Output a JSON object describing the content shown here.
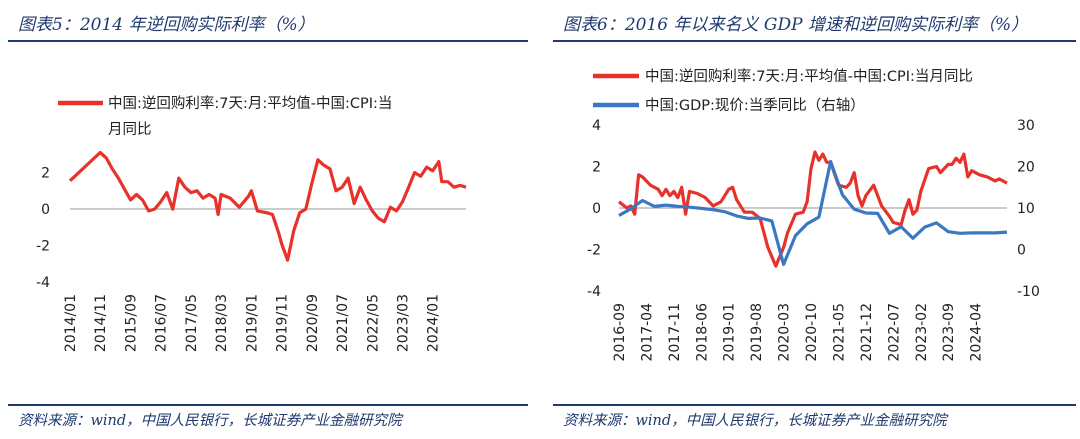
{
  "colors": {
    "red": "#e8312b",
    "blue": "#3a78c3",
    "navy": "#1f3a6e"
  },
  "left_panel": {
    "title": "图表5：2014 年逆回购实际利率（%）",
    "source": "资料来源：wind，中国人民银行，长城证券产业金融研究院"
  },
  "right_panel": {
    "title": "图表6：2016 年以来名义 GDP 增速和逆回购实际利率（%）",
    "source": "资料来源：wind，中国人民银行，长城证券产业金融研究院"
  },
  "chart_data": [
    {
      "type": "line",
      "title": "图表5：2014 年逆回购实际利率（%）",
      "legend": "top-left",
      "y_ticks": [
        "2",
        "0",
        "-2",
        "-4"
      ],
      "ylim": [
        -4,
        2.8
      ],
      "x_ticks": [
        "2014/01",
        "2014/11",
        "2015/09",
        "2016/07",
        "2017/05",
        "2018/03",
        "2019/01",
        "2019/11",
        "2020/09",
        "2021/07",
        "2022/05",
        "2023/03",
        "2024/01"
      ],
      "series": [
        {
          "name": "中国:逆回购利率:7天:月:平均值-中国:CPI:当月同比",
          "legend_lines": [
            "中国:逆回购利率:7天:月:平均值-中国:CPI:当",
            "月同比"
          ],
          "color": "#e8312b",
          "points": [
            [
              "2014/01",
              1.55
            ],
            [
              "2014/11",
              3.1
            ],
            [
              "2015/01",
              2.8
            ],
            [
              "2015/03",
              2.2
            ],
            [
              "2015/05",
              1.7
            ],
            [
              "2015/07",
              1.1
            ],
            [
              "2015/09",
              0.5
            ],
            [
              "2015/11",
              0.8
            ],
            [
              "2016/01",
              0.5
            ],
            [
              "2016/03",
              -0.1
            ],
            [
              "2016/05",
              0.0
            ],
            [
              "2016/07",
              0.4
            ],
            [
              "2016/09",
              0.9
            ],
            [
              "2016/11",
              0.0
            ],
            [
              "2017/01",
              1.7
            ],
            [
              "2017/03",
              1.2
            ],
            [
              "2017/05",
              0.9
            ],
            [
              "2017/07",
              1.0
            ],
            [
              "2017/09",
              0.6
            ],
            [
              "2017/11",
              0.8
            ],
            [
              "2018/01",
              0.6
            ],
            [
              "2018/02",
              -0.3
            ],
            [
              "2018/03",
              0.8
            ],
            [
              "2018/06",
              0.6
            ],
            [
              "2018/09",
              0.1
            ],
            [
              "2018/12",
              0.7
            ],
            [
              "2019/01",
              1.0
            ],
            [
              "2019/03",
              -0.1
            ],
            [
              "2019/06",
              -0.2
            ],
            [
              "2019/08",
              -0.3
            ],
            [
              "2019/10",
              -1.3
            ],
            [
              "2019/11",
              -1.9
            ],
            [
              "2020/01",
              -2.8
            ],
            [
              "2020/03",
              -1.2
            ],
            [
              "2020/05",
              -0.2
            ],
            [
              "2020/07",
              0.0
            ],
            [
              "2020/09",
              1.4
            ],
            [
              "2020/11",
              2.7
            ],
            [
              "2021/01",
              2.4
            ],
            [
              "2021/03",
              2.2
            ],
            [
              "2021/05",
              1.0
            ],
            [
              "2021/07",
              1.2
            ],
            [
              "2021/09",
              1.7
            ],
            [
              "2021/11",
              0.3
            ],
            [
              "2022/01",
              1.2
            ],
            [
              "2022/03",
              0.5
            ],
            [
              "2022/05",
              -0.1
            ],
            [
              "2022/07",
              -0.5
            ],
            [
              "2022/09",
              -0.7
            ],
            [
              "2022/11",
              0.1
            ],
            [
              "2023/01",
              -0.1
            ],
            [
              "2023/03",
              0.4
            ],
            [
              "2023/05",
              1.2
            ],
            [
              "2023/07",
              2.0
            ],
            [
              "2023/09",
              1.8
            ],
            [
              "2023/11",
              2.3
            ],
            [
              "2024/01",
              2.1
            ],
            [
              "2024/03",
              2.6
            ],
            [
              "2024/04",
              1.5
            ],
            [
              "2024/06",
              1.5
            ],
            [
              "2024/08",
              1.2
            ],
            [
              "2024/10",
              1.3
            ],
            [
              "2024/12",
              1.2
            ]
          ]
        }
      ]
    },
    {
      "type": "line",
      "title": "图表6：2016 年以来名义 GDP 增速和逆回购实际利率（%）",
      "legend": "top-left",
      "y_ticks_left": [
        "4",
        "2",
        "0",
        "-2",
        "-4"
      ],
      "ylim_left": [
        -4,
        4
      ],
      "y_ticks_right": [
        "30",
        "20",
        "10",
        "0",
        "-10"
      ],
      "ylim_right": [
        -10,
        30
      ],
      "x_ticks": [
        "2016-09",
        "2017-04",
        "2017-11",
        "2018-06",
        "2019-01",
        "2019-08",
        "2020-03",
        "2020-10",
        "2021-05",
        "2021-12",
        "2022-07",
        "2023-02",
        "2023-09",
        "2024-04"
      ],
      "series": [
        {
          "name": "中国:逆回购利率:7天:月:平均值-中国:CPI:当月同比",
          "color": "#e8312b",
          "axis": "left",
          "points": [
            [
              "2016-09",
              0.3
            ],
            [
              "2016-11",
              0.0
            ],
            [
              "2016-12",
              0.1
            ],
            [
              "2017-01",
              -0.3
            ],
            [
              "2017-02",
              1.6
            ],
            [
              "2017-03",
              1.5
            ],
            [
              "2017-05",
              1.1
            ],
            [
              "2017-07",
              0.9
            ],
            [
              "2017-08",
              0.6
            ],
            [
              "2017-09",
              0.9
            ],
            [
              "2017-10",
              0.6
            ],
            [
              "2017-11",
              0.8
            ],
            [
              "2017-12",
              0.5
            ],
            [
              "2018-01",
              1.0
            ],
            [
              "2018-02",
              -0.3
            ],
            [
              "2018-03",
              0.8
            ],
            [
              "2018-05",
              0.7
            ],
            [
              "2018-07",
              0.5
            ],
            [
              "2018-09",
              0.1
            ],
            [
              "2018-11",
              0.3
            ],
            [
              "2019-01",
              0.9
            ],
            [
              "2019-02",
              1.0
            ],
            [
              "2019-03",
              0.4
            ],
            [
              "2019-05",
              -0.2
            ],
            [
              "2019-07",
              -0.2
            ],
            [
              "2019-09",
              -0.5
            ],
            [
              "2019-11",
              -1.9
            ],
            [
              "2020-01",
              -2.8
            ],
            [
              "2020-03",
              -1.9
            ],
            [
              "2020-04",
              -1.2
            ],
            [
              "2020-06",
              -0.3
            ],
            [
              "2020-08",
              -0.2
            ],
            [
              "2020-09",
              0.3
            ],
            [
              "2020-10",
              1.9
            ],
            [
              "2020-11",
              2.7
            ],
            [
              "2020-12",
              2.3
            ],
            [
              "2021-01",
              2.6
            ],
            [
              "2021-02",
              2.2
            ],
            [
              "2021-03",
              2.2
            ],
            [
              "2021-05",
              1.1
            ],
            [
              "2021-07",
              1.0
            ],
            [
              "2021-08",
              1.2
            ],
            [
              "2021-09",
              1.7
            ],
            [
              "2021-10",
              0.6
            ],
            [
              "2021-11",
              0.1
            ],
            [
              "2021-12",
              0.6
            ],
            [
              "2022-02",
              1.1
            ],
            [
              "2022-04",
              0.1
            ],
            [
              "2022-06",
              -0.4
            ],
            [
              "2022-07",
              -0.7
            ],
            [
              "2022-09",
              -0.8
            ],
            [
              "2022-10",
              -0.1
            ],
            [
              "2022-11",
              0.4
            ],
            [
              "2022-12",
              -0.3
            ],
            [
              "2023-01",
              -0.1
            ],
            [
              "2023-02",
              0.8
            ],
            [
              "2023-04",
              1.9
            ],
            [
              "2023-06",
              2.0
            ],
            [
              "2023-07",
              1.7
            ],
            [
              "2023-09",
              2.1
            ],
            [
              "2023-10",
              2.1
            ],
            [
              "2023-11",
              2.4
            ],
            [
              "2023-12",
              2.2
            ],
            [
              "2024-01",
              2.6
            ],
            [
              "2024-02",
              1.5
            ],
            [
              "2024-03",
              1.8
            ],
            [
              "2024-05",
              1.6
            ],
            [
              "2024-07",
              1.5
            ],
            [
              "2024-09",
              1.3
            ],
            [
              "2024-10",
              1.4
            ],
            [
              "2024-12",
              1.2
            ]
          ]
        },
        {
          "name": "中国:GDP:现价:当季同比（右轴）",
          "color": "#3a78c3",
          "axis": "right",
          "points": [
            [
              "2016-09",
              8.2
            ],
            [
              "2016-12",
              9.8
            ],
            [
              "2017-03",
              11.8
            ],
            [
              "2017-06",
              10.4
            ],
            [
              "2017-09",
              10.7
            ],
            [
              "2017-12",
              10.4
            ],
            [
              "2018-03",
              10.2
            ],
            [
              "2018-06",
              9.9
            ],
            [
              "2018-09",
              9.6
            ],
            [
              "2018-12",
              9.1
            ],
            [
              "2019-03",
              8.1
            ],
            [
              "2019-06",
              7.5
            ],
            [
              "2019-09",
              7.6
            ],
            [
              "2019-12",
              6.9
            ],
            [
              "2020-03",
              -3.6
            ],
            [
              "2020-06",
              3.3
            ],
            [
              "2020-09",
              6.2
            ],
            [
              "2020-12",
              7.8
            ],
            [
              "2021-03",
              21.2
            ],
            [
              "2021-06",
              13.2
            ],
            [
              "2021-09",
              9.7
            ],
            [
              "2021-12",
              8.8
            ],
            [
              "2022-03",
              8.7
            ],
            [
              "2022-06",
              3.9
            ],
            [
              "2022-09",
              5.5
            ],
            [
              "2022-12",
              2.7
            ],
            [
              "2023-03",
              5.4
            ],
            [
              "2023-06",
              6.4
            ],
            [
              "2023-09",
              4.3
            ],
            [
              "2023-12",
              3.9
            ],
            [
              "2024-03",
              4.0
            ],
            [
              "2024-06",
              4.0
            ],
            [
              "2024-09",
              4.0
            ],
            [
              "2024-12",
              4.2
            ]
          ]
        }
      ]
    }
  ],
  "right_legend": [
    {
      "label": "中国:逆回购利率:7天:月:平均值-中国:CPI:当月同比"
    },
    {
      "label": "中国:GDP:现价:当季同比（右轴）"
    }
  ]
}
